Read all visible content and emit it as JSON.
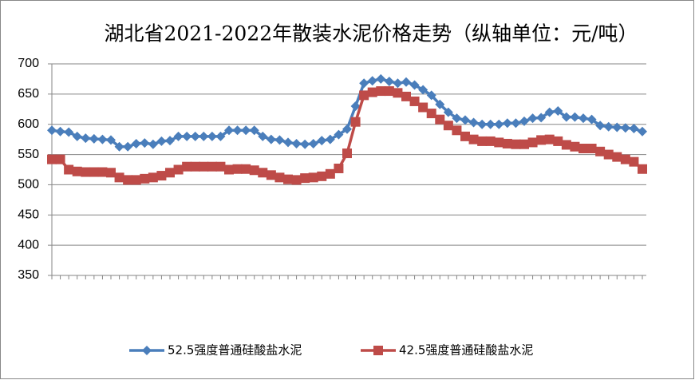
{
  "chart_data": {
    "type": "line",
    "title": "湖北省2021-2022年散装水泥价格走势（纵轴单位：元/吨）",
    "categories": [
      null,
      null,
      null,
      null,
      null,
      null,
      null,
      null,
      null,
      null,
      null,
      null,
      null,
      null,
      null,
      null,
      null,
      null,
      null,
      null,
      null,
      null,
      null,
      null,
      null,
      null,
      null,
      null,
      null,
      null,
      null,
      null,
      null,
      null,
      null,
      null,
      null,
      null,
      null,
      null,
      null,
      null,
      null,
      null,
      null,
      null,
      null,
      null,
      null,
      null,
      null,
      null,
      null,
      null,
      null,
      null,
      null,
      null,
      null,
      null,
      null,
      null,
      null,
      null,
      null,
      null,
      null,
      null,
      null,
      null,
      null
    ],
    "series": [
      {
        "name": "52.5强度普通硅酸盐水泥",
        "color": "#4a7ebb",
        "marker": "diamond",
        "values": [
          590,
          588,
          587,
          580,
          577,
          576,
          575,
          574,
          563,
          563,
          568,
          569,
          567,
          572,
          573,
          580,
          580,
          580,
          580,
          580,
          580,
          590,
          590,
          590,
          590,
          580,
          575,
          574,
          570,
          568,
          567,
          568,
          573,
          575,
          583,
          592,
          630,
          668,
          672,
          675,
          671,
          668,
          670,
          665,
          657,
          648,
          633,
          620,
          610,
          607,
          603,
          600,
          600,
          600,
          602,
          602,
          605,
          610,
          611,
          620,
          622,
          612,
          612,
          610,
          608,
          598,
          596,
          595,
          594,
          593,
          588
        ]
      },
      {
        "name": "42.5强度普通硅酸盐水泥",
        "color": "#be4b48",
        "marker": "square",
        "values": [
          542,
          542,
          525,
          522,
          521,
          521,
          521,
          520,
          512,
          508,
          508,
          510,
          512,
          515,
          520,
          525,
          530,
          530,
          530,
          530,
          530,
          525,
          526,
          526,
          524,
          520,
          516,
          512,
          509,
          508,
          511,
          512,
          514,
          518,
          527,
          552,
          604,
          648,
          653,
          655,
          655,
          652,
          646,
          638,
          628,
          618,
          608,
          598,
          590,
          580,
          575,
          572,
          572,
          570,
          568,
          567,
          567,
          570,
          574,
          575,
          572,
          566,
          563,
          560,
          560,
          555,
          550,
          546,
          542,
          538,
          526
        ]
      }
    ],
    "ylim": [
      350,
      700
    ],
    "yticks": [
      350,
      400,
      450,
      500,
      550,
      600,
      650,
      700
    ],
    "grid": true
  }
}
